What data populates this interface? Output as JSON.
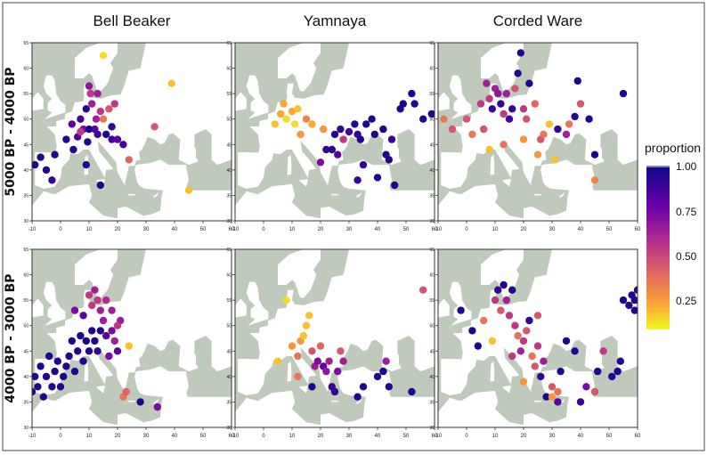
{
  "columns": [
    "Bell Beaker",
    "Yamnaya",
    "Corded Ware"
  ],
  "rows": [
    "5000 BP - 4000 BP",
    "4000 BP - 3000 BP"
  ],
  "axes": {
    "x_ticks": [
      "-10",
      "0",
      "10",
      "20",
      "30",
      "40",
      "50",
      "60"
    ],
    "y_ticks": [
      "30",
      "35",
      "40",
      "45",
      "50",
      "55",
      "60",
      "65"
    ],
    "x_range": [
      -10,
      60
    ],
    "y_range": [
      30,
      65
    ]
  },
  "legend": {
    "title": "proportion",
    "ticks": [
      "1.00",
      "0.75",
      "0.50",
      "0.25"
    ],
    "colormap": "plasma-reversed"
  },
  "colors": {
    "sea": "#bfcabd",
    "land": "#ffffff",
    "low": "#f0f921",
    "high": "#0d0887"
  },
  "chart_data": {
    "type": "scatter",
    "panels": [
      {
        "row": 0,
        "col": 0,
        "points": [
          [
            -9,
            41,
            0.95
          ],
          [
            -7,
            42.5,
            0.95
          ],
          [
            -5,
            40,
            0.95
          ],
          [
            -3,
            38,
            0.9
          ],
          [
            -2,
            43,
            0.95
          ],
          [
            2,
            46,
            0.95
          ],
          [
            4,
            49,
            0.8
          ],
          [
            4.5,
            44,
            0.95
          ],
          [
            6,
            46.5,
            0.85
          ],
          [
            7,
            50,
            0.85
          ],
          [
            8,
            48,
            0.7
          ],
          [
            9,
            52,
            0.95
          ],
          [
            9.5,
            45.5,
            0.95
          ],
          [
            10,
            56.5,
            0.65
          ],
          [
            10.5,
            55,
            0.5
          ],
          [
            11,
            53,
            0.6
          ],
          [
            12,
            48,
            0.8
          ],
          [
            12.5,
            50,
            0.6
          ],
          [
            13,
            47,
            0.85
          ],
          [
            13,
            55,
            0.6
          ],
          [
            14,
            51.5,
            0.5
          ],
          [
            15,
            50,
            0.3
          ],
          [
            16,
            47,
            0.95
          ],
          [
            17,
            52,
            0.4
          ],
          [
            18,
            46,
            0.85
          ],
          [
            19,
            53,
            0.5
          ],
          [
            20,
            46,
            0.8
          ],
          [
            22,
            45,
            0.85
          ],
          [
            24,
            42,
            0.35
          ],
          [
            14,
            37,
            0.95
          ],
          [
            9,
            41,
            0.95
          ],
          [
            7,
            47.5,
            0.5
          ],
          [
            10,
            48,
            0.95
          ],
          [
            15,
            62.5,
            0.05
          ],
          [
            33,
            48.5,
            0.4
          ],
          [
            39,
            57,
            0.1
          ],
          [
            45,
            36,
            0.1
          ],
          [
            18,
            48.5,
            0.9
          ]
        ]
      },
      {
        "row": 0,
        "col": 1,
        "points": [
          [
            4,
            49,
            0.1
          ],
          [
            6,
            51,
            0.15
          ],
          [
            7,
            53,
            0.15
          ],
          [
            8,
            50,
            0.05
          ],
          [
            10,
            51.5,
            0.15
          ],
          [
            11,
            49,
            0.05
          ],
          [
            12,
            52,
            0.1
          ],
          [
            13,
            47,
            0.2
          ],
          [
            15,
            50,
            0.25
          ],
          [
            17,
            49,
            0.15
          ],
          [
            21,
            48,
            0.2
          ],
          [
            22,
            44,
            0.9
          ],
          [
            24,
            44,
            0.95
          ],
          [
            25,
            47,
            0.95
          ],
          [
            26,
            43,
            0.8
          ],
          [
            27,
            48,
            0.9
          ],
          [
            30,
            47.5,
            0.85
          ],
          [
            32,
            49,
            0.95
          ],
          [
            33,
            47,
            0.9
          ],
          [
            34,
            46,
            0.95
          ],
          [
            36,
            49,
            0.95
          ],
          [
            38,
            50,
            0.95
          ],
          [
            39,
            47,
            0.95
          ],
          [
            42,
            48,
            0.95
          ],
          [
            43,
            43,
            0.95
          ],
          [
            44,
            42,
            0.95
          ],
          [
            45,
            46,
            0.9
          ],
          [
            48,
            52,
            0.95
          ],
          [
            49,
            53,
            0.95
          ],
          [
            52,
            55,
            0.95
          ],
          [
            53,
            53,
            0.95
          ],
          [
            56,
            50,
            0.95
          ],
          [
            59,
            51,
            0.95
          ],
          [
            35,
            41,
            0.9
          ],
          [
            40,
            38.5,
            0.95
          ],
          [
            46,
            37,
            0.95
          ],
          [
            33,
            38,
            0.9
          ],
          [
            20,
            41.5,
            0.7
          ],
          [
            28,
            46,
            0.5
          ]
        ]
      },
      {
        "row": 0,
        "col": 2,
        "points": [
          [
            -8,
            50,
            0.3
          ],
          [
            -5,
            48,
            0.4
          ],
          [
            0,
            50,
            0.4
          ],
          [
            2,
            47,
            0.3
          ],
          [
            5,
            53,
            0.5
          ],
          [
            6,
            48,
            0.4
          ],
          [
            7,
            57,
            0.6
          ],
          [
            8,
            54,
            0.5
          ],
          [
            9,
            52,
            0.9
          ],
          [
            10,
            56,
            0.6
          ],
          [
            11,
            55,
            0.65
          ],
          [
            12,
            53,
            0.9
          ],
          [
            13,
            51,
            0.5
          ],
          [
            14,
            55,
            0.6
          ],
          [
            15,
            50,
            0.85
          ],
          [
            16,
            52,
            0.9
          ],
          [
            17,
            56,
            0.4
          ],
          [
            18,
            59,
            0.95
          ],
          [
            19,
            63,
            0.95
          ],
          [
            20,
            52,
            0.5
          ],
          [
            21,
            50,
            0.4
          ],
          [
            22,
            57,
            0.95
          ],
          [
            24,
            53,
            0.35
          ],
          [
            25,
            43,
            0.2
          ],
          [
            26,
            46,
            0.4
          ],
          [
            27,
            47,
            0.3
          ],
          [
            29,
            49,
            0.1
          ],
          [
            31,
            42,
            0.1
          ],
          [
            32,
            48,
            0.9
          ],
          [
            35,
            47,
            0.6
          ],
          [
            36,
            49,
            0.3
          ],
          [
            38,
            50.5,
            0.95
          ],
          [
            39,
            57.5,
            0.95
          ],
          [
            40,
            53,
            0.4
          ],
          [
            43,
            50,
            0.95
          ],
          [
            45,
            43,
            0.95
          ],
          [
            45,
            38,
            0.25
          ],
          [
            55,
            55,
            0.95
          ],
          [
            13,
            45,
            0.3
          ],
          [
            8,
            44,
            0.1
          ],
          [
            20,
            46,
            0.2
          ]
        ]
      },
      {
        "row": 1,
        "col": 0,
        "points": [
          [
            -9,
            40,
            0.95
          ],
          [
            -8,
            38,
            0.95
          ],
          [
            -7,
            42,
            0.95
          ],
          [
            -6,
            36,
            0.95
          ],
          [
            -5,
            40,
            0.95
          ],
          [
            -4,
            44,
            0.95
          ],
          [
            -3,
            38,
            0.95
          ],
          [
            -2,
            41,
            0.95
          ],
          [
            -1,
            43,
            0.95
          ],
          [
            0,
            38,
            0.95
          ],
          [
            1,
            40,
            0.95
          ],
          [
            2,
            42,
            0.95
          ],
          [
            3,
            44,
            0.95
          ],
          [
            4,
            47,
            0.95
          ],
          [
            5,
            41,
            0.95
          ],
          [
            6,
            45,
            0.95
          ],
          [
            7,
            48,
            0.95
          ],
          [
            8,
            43,
            0.95
          ],
          [
            9,
            47,
            0.95
          ],
          [
            10,
            45,
            0.95
          ],
          [
            11,
            49,
            0.95
          ],
          [
            12,
            47,
            0.95
          ],
          [
            13,
            45,
            0.9
          ],
          [
            14,
            49,
            0.95
          ],
          [
            15,
            51,
            0.6
          ],
          [
            16,
            48,
            0.8
          ],
          [
            17,
            44,
            0.7
          ],
          [
            18,
            49,
            0.7
          ],
          [
            19,
            47,
            0.6
          ],
          [
            20,
            45,
            0.8
          ],
          [
            21,
            51,
            0.6
          ],
          [
            10,
            56,
            0.5
          ],
          [
            11,
            54,
            0.5
          ],
          [
            12,
            57,
            0.6
          ],
          [
            13,
            55,
            0.5
          ],
          [
            14,
            53,
            0.6
          ],
          [
            16,
            55,
            0.55
          ],
          [
            18,
            53,
            0.6
          ],
          [
            20,
            50,
            0.5
          ],
          [
            22,
            36,
            0.3
          ],
          [
            23,
            37,
            0.35
          ],
          [
            28,
            35,
            0.95
          ],
          [
            34,
            34,
            0.7
          ],
          [
            24,
            46,
            0.1
          ],
          [
            8,
            52,
            0.8
          ],
          [
            5,
            53,
            0.7
          ],
          [
            -10,
            37,
            0.95
          ]
        ]
      },
      {
        "row": 1,
        "col": 1,
        "points": [
          [
            8,
            55,
            0.05
          ],
          [
            10,
            46,
            0.2
          ],
          [
            12,
            44,
            0.3
          ],
          [
            13,
            47,
            0.2
          ],
          [
            14,
            48,
            0.1
          ],
          [
            15,
            50,
            0.1
          ],
          [
            16,
            52,
            0.1
          ],
          [
            17,
            45,
            0.4
          ],
          [
            18,
            42,
            0.6
          ],
          [
            19,
            43,
            0.7
          ],
          [
            20,
            46,
            0.35
          ],
          [
            21,
            42,
            0.8
          ],
          [
            22,
            41,
            0.65
          ],
          [
            23,
            43,
            0.6
          ],
          [
            24,
            38,
            0.9
          ],
          [
            25,
            37,
            0.9
          ],
          [
            26,
            41,
            0.7
          ],
          [
            27,
            45,
            0.4
          ],
          [
            28,
            43,
            0.6
          ],
          [
            17,
            38,
            0.95
          ],
          [
            33,
            36,
            0.95
          ],
          [
            35,
            38,
            0.95
          ],
          [
            40,
            40,
            0.95
          ],
          [
            42,
            41,
            0.95
          ],
          [
            43,
            43,
            0.6
          ],
          [
            44,
            38,
            0.95
          ],
          [
            52,
            37,
            0.95
          ],
          [
            56,
            57,
            0.4
          ],
          [
            5,
            43,
            0.1
          ],
          [
            12,
            40,
            0.3
          ]
        ]
      },
      {
        "row": 1,
        "col": 2,
        "points": [
          [
            -2,
            53,
            0.95
          ],
          [
            2,
            49,
            0.95
          ],
          [
            4,
            46,
            0.95
          ],
          [
            6,
            51,
            0.3
          ],
          [
            9,
            47,
            0.1
          ],
          [
            10,
            55,
            0.5
          ],
          [
            11,
            57,
            0.9
          ],
          [
            12,
            53,
            0.4
          ],
          [
            13,
            58,
            0.95
          ],
          [
            14,
            55,
            0.6
          ],
          [
            15,
            52,
            0.5
          ],
          [
            16,
            57,
            0.95
          ],
          [
            17,
            50,
            0.5
          ],
          [
            18,
            48,
            0.3
          ],
          [
            19,
            45,
            0.6
          ],
          [
            20,
            47,
            0.5
          ],
          [
            21,
            49,
            0.4
          ],
          [
            22,
            51,
            0.9
          ],
          [
            23,
            44,
            0.3
          ],
          [
            24,
            42,
            0.4
          ],
          [
            25,
            46,
            0.5
          ],
          [
            26,
            40,
            0.9
          ],
          [
            27,
            43,
            0.6
          ],
          [
            28,
            36,
            0.95
          ],
          [
            30,
            38,
            0.4
          ],
          [
            32,
            35,
            0.8
          ],
          [
            33,
            41,
            0.95
          ],
          [
            35,
            47,
            0.95
          ],
          [
            38,
            45,
            0.95
          ],
          [
            40,
            35,
            0.9
          ],
          [
            42,
            38,
            0.7
          ],
          [
            45,
            37,
            0.4
          ],
          [
            46,
            41,
            0.95
          ],
          [
            48,
            45,
            0.5
          ],
          [
            51,
            40,
            0.95
          ],
          [
            53,
            41,
            0.95
          ],
          [
            54,
            43,
            0.95
          ],
          [
            55,
            55,
            0.95
          ],
          [
            57,
            54,
            0.95
          ],
          [
            58,
            56,
            0.95
          ],
          [
            59,
            55,
            0.95
          ],
          [
            60,
            57,
            0.95
          ],
          [
            59,
            53,
            0.95
          ],
          [
            20,
            39,
            0.2
          ],
          [
            30,
            36,
            0.2
          ],
          [
            16,
            44,
            0.5
          ],
          [
            25,
            52,
            0.4
          ],
          [
            32,
            37,
            0.3
          ]
        ]
      }
    ]
  }
}
